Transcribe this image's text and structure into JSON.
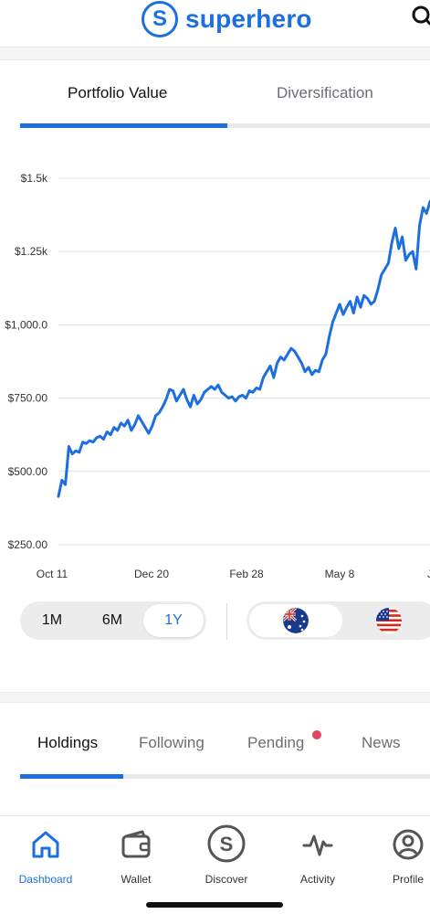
{
  "header": {
    "brand": "superhero",
    "logo_letter": "S"
  },
  "top_tabs": [
    {
      "label": "Portfolio Value",
      "active": true
    },
    {
      "label": "Diversification",
      "active": false
    }
  ],
  "chart_data": {
    "type": "line",
    "title": "",
    "xlabel": "",
    "ylabel": "",
    "ylim": [
      250,
      1500
    ],
    "y_ticks": [
      "$1.5k",
      "$1.25k",
      "$1,000.0",
      "$750.00",
      "$500.00",
      "$250.00"
    ],
    "y_tick_values": [
      1500,
      1250,
      1000,
      750,
      500,
      250
    ],
    "x_ticks": [
      "Oct 11",
      "Dec 20",
      "Feb 28",
      "May 8",
      "Ju"
    ],
    "grid": true,
    "line_color": "#1d6fe0",
    "series": [
      {
        "values": [
          415,
          470,
          455,
          585,
          560,
          570,
          565,
          600,
          595,
          605,
          600,
          615,
          620,
          610,
          635,
          625,
          650,
          640,
          665,
          655,
          675,
          640,
          660,
          690,
          670,
          650,
          630,
          655,
          690,
          700,
          720,
          745,
          780,
          775,
          740,
          760,
          780,
          745,
          720,
          760,
          730,
          745,
          770,
          780,
          790,
          780,
          795,
          770,
          760,
          750,
          755,
          740,
          755,
          760,
          750,
          775,
          770,
          785,
          780,
          820,
          840,
          860,
          820,
          870,
          890,
          880,
          900,
          920,
          910,
          890,
          870,
          840,
          855,
          830,
          845,
          840,
          880,
          900,
          960,
          1010,
          1040,
          1070,
          1035,
          1060,
          1080,
          1040,
          1095,
          1060,
          1100,
          1090,
          1070,
          1080,
          1120,
          1170,
          1190,
          1210,
          1280,
          1330,
          1260,
          1300,
          1220,
          1240,
          1250,
          1190,
          1340,
          1400,
          1380,
          1420
        ]
      }
    ]
  },
  "ranges": [
    {
      "label": "1M",
      "selected": false
    },
    {
      "label": "6M",
      "selected": false
    },
    {
      "label": "1Y",
      "selected": true
    }
  ],
  "currencies": [
    {
      "flag": "australia-flag-icon",
      "selected": true
    },
    {
      "flag": "usa-flag-icon",
      "selected": false
    }
  ],
  "holdings_tabs": [
    {
      "label": "Holdings",
      "active": true
    },
    {
      "label": "Following",
      "active": false
    },
    {
      "label": "Pending",
      "active": false
    },
    {
      "label": "News",
      "active": false
    }
  ],
  "nav": [
    {
      "label": "Dashboard",
      "icon": "home-icon",
      "active": true
    },
    {
      "label": "Wallet",
      "icon": "wallet-icon",
      "active": false
    },
    {
      "label": "Discover",
      "icon": "superhero-s-icon",
      "active": false
    },
    {
      "label": "Activity",
      "icon": "activity-icon",
      "active": false
    },
    {
      "label": "Profile",
      "icon": "profile-icon",
      "active": false
    }
  ],
  "colors": {
    "accent": "#1d6fe0",
    "notification": "#e2455c"
  }
}
